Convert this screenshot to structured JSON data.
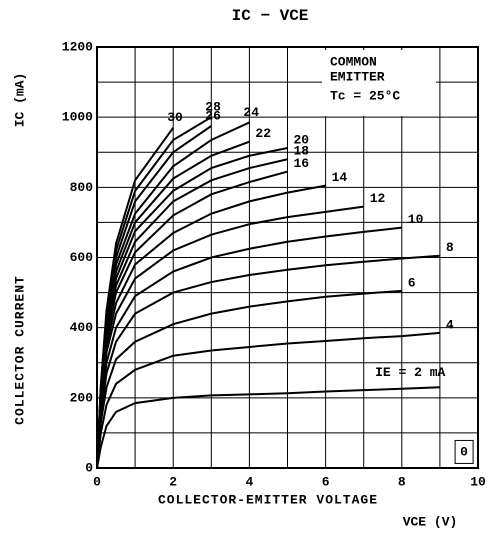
{
  "chart_data": {
    "type": "line",
    "title": "IC − VCE",
    "x_label": "COLLECTOR-EMITTER VOLTAGE",
    "x_unit_label": "VCE (V)",
    "y_label": "COLLECTOR CURRENT",
    "y_unit_label": "IC (mA)",
    "annotation": [
      "COMMON",
      "EMITTER",
      "Tc = 25°C"
    ],
    "x": [
      0,
      0.1,
      0.25,
      0.5,
      1,
      2,
      3,
      4,
      5,
      6,
      7,
      8,
      9
    ],
    "xlim": [
      0,
      10
    ],
    "ylim": [
      0,
      1200
    ],
    "xticks": [
      0,
      2,
      4,
      6,
      8,
      10
    ],
    "yticks": [
      0,
      200,
      400,
      600,
      800,
      1000,
      1200
    ],
    "x_minor_ticks": [
      1,
      3,
      5,
      7,
      9
    ],
    "y_minor_ticks": [
      100,
      300,
      500,
      700,
      900,
      1100
    ],
    "grid": true,
    "color": "#000000",
    "series": [
      {
        "name": "0",
        "values": [
          0,
          0,
          0,
          0,
          0,
          0,
          0,
          0,
          0,
          0,
          0,
          0,
          0
        ]
      },
      {
        "name": "IE = 2 mA",
        "values": [
          0,
          60,
          120,
          160,
          185,
          200,
          207,
          210,
          213,
          218,
          222,
          226,
          230
        ]
      },
      {
        "name": "4",
        "values": [
          0,
          100,
          180,
          240,
          280,
          320,
          335,
          345,
          355,
          362,
          370,
          376,
          385
        ]
      },
      {
        "name": "6",
        "values": [
          0,
          130,
          230,
          310,
          360,
          410,
          440,
          460,
          475,
          488,
          497,
          505,
          null
        ]
      },
      {
        "name": "8",
        "values": [
          0,
          150,
          270,
          360,
          440,
          500,
          530,
          550,
          565,
          578,
          588,
          597,
          605
        ]
      },
      {
        "name": "10",
        "values": [
          0,
          170,
          300,
          400,
          490,
          560,
          600,
          625,
          645,
          660,
          673,
          685,
          null
        ]
      },
      {
        "name": "12",
        "values": [
          0,
          180,
          330,
          440,
          540,
          620,
          665,
          695,
          715,
          730,
          745,
          null,
          null
        ]
      },
      {
        "name": "14",
        "values": [
          0,
          190,
          350,
          470,
          580,
          670,
          725,
          760,
          785,
          805,
          null,
          null,
          null
        ]
      },
      {
        "name": "16",
        "values": [
          0,
          200,
          370,
          500,
          615,
          720,
          780,
          815,
          845,
          null,
          null,
          null,
          null
        ]
      },
      {
        "name": "18",
        "values": [
          0,
          205,
          385,
          520,
          645,
          760,
          820,
          855,
          880,
          null,
          null,
          null,
          null
        ]
      },
      {
        "name": "20",
        "values": [
          0,
          210,
          400,
          540,
          675,
          790,
          855,
          890,
          912,
          null,
          null,
          null,
          null
        ]
      },
      {
        "name": "22",
        "values": [
          0,
          215,
          410,
          560,
          700,
          825,
          890,
          930,
          null,
          null,
          null,
          null,
          null
        ]
      },
      {
        "name": "24",
        "values": [
          0,
          220,
          420,
          580,
          725,
          860,
          935,
          985,
          null,
          null,
          null,
          null,
          null
        ]
      },
      {
        "name": "26",
        "values": [
          0,
          225,
          430,
          600,
          760,
          900,
          975,
          null,
          null,
          null,
          null,
          null,
          null
        ]
      },
      {
        "name": "28",
        "values": [
          0,
          230,
          440,
          620,
          790,
          935,
          1000,
          null,
          null,
          null,
          null,
          null,
          null
        ]
      },
      {
        "name": "30",
        "values": [
          0,
          235,
          450,
          640,
          820,
          970,
          null,
          null,
          null,
          null,
          null,
          null,
          null
        ]
      }
    ]
  }
}
